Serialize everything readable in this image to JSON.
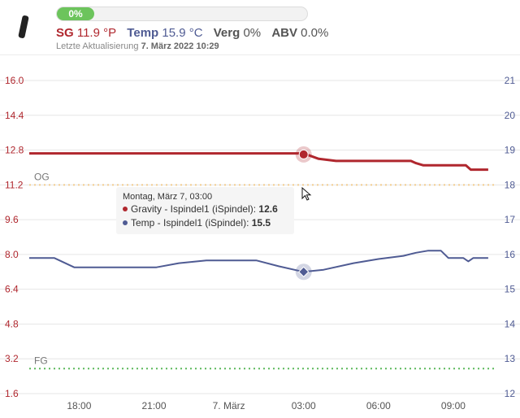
{
  "header": {
    "progress": {
      "label": "0%",
      "value": 0
    },
    "stats": [
      {
        "key": "SG",
        "value": "11.9 °P",
        "tone": "sg"
      },
      {
        "key": "Temp",
        "value": "15.9 °C",
        "tone": "temp"
      },
      {
        "key": "Verg",
        "value": "0%",
        "tone": "grey"
      },
      {
        "key": "ABV",
        "value": "0.0%",
        "tone": "grey"
      }
    ],
    "updated_label": "Letzte Aktualisierung",
    "updated_value": "7. März 2022 10:29",
    "device_icon": "hydrometer-icon"
  },
  "colors": {
    "gravity": "#b0272e",
    "temp": "#4f5b93",
    "og_line": "#f2cc8f",
    "fg_line": "#5cb85c",
    "grid": "#e6e6e6"
  },
  "chart_data": {
    "type": "line",
    "x_unit": "hours since 16:00 on 6 March 2022",
    "x_ticks": [
      {
        "x": 2,
        "label": "18:00"
      },
      {
        "x": 5,
        "label": "21:00"
      },
      {
        "x": 8,
        "label": "7. März"
      },
      {
        "x": 11,
        "label": "03:00"
      },
      {
        "x": 14,
        "label": "06:00"
      },
      {
        "x": 17,
        "label": "09:00"
      }
    ],
    "xlim": [
      0,
      18.5
    ],
    "y_left": {
      "min": 1.6,
      "max": 16.0,
      "ticks": [
        "16.0",
        "14.4",
        "12.8",
        "11.2",
        "9.6",
        "8.0",
        "6.4",
        "4.8",
        "3.2",
        "1.6"
      ]
    },
    "y_right": {
      "min": 12,
      "max": 21,
      "ticks": [
        "21",
        "20",
        "19",
        "18",
        "17",
        "16",
        "15",
        "14",
        "13",
        "12"
      ]
    },
    "reference_lines": [
      {
        "label": "OG",
        "value": 11.2,
        "axis": "left",
        "style": "dotted",
        "color": "#f2cc8f"
      },
      {
        "label": "FG",
        "value": 2.75,
        "axis": "left",
        "style": "dotted",
        "color": "#5cb85c"
      }
    ],
    "series": [
      {
        "name": "Gravity - Ispindel1 (iSpindel)",
        "axis": "left",
        "color": "#b0272e",
        "points": [
          [
            0,
            12.65
          ],
          [
            6,
            12.65
          ],
          [
            11,
            12.65
          ],
          [
            11.6,
            12.4
          ],
          [
            12.3,
            12.3
          ],
          [
            15.3,
            12.3
          ],
          [
            15.5,
            12.2
          ],
          [
            15.8,
            12.1
          ],
          [
            17.5,
            12.1
          ],
          [
            17.7,
            11.9
          ],
          [
            18.4,
            11.9
          ]
        ]
      },
      {
        "name": "Temp - Ispindel1 (iSpindel)",
        "axis": "right",
        "color": "#4f5b93",
        "points": [
          [
            0,
            15.9
          ],
          [
            1,
            15.9
          ],
          [
            1.8,
            15.63
          ],
          [
            5.1,
            15.63
          ],
          [
            6,
            15.75
          ],
          [
            7.1,
            15.83
          ],
          [
            9.1,
            15.83
          ],
          [
            10,
            15.66
          ],
          [
            11,
            15.5
          ],
          [
            11.8,
            15.56
          ],
          [
            13,
            15.75
          ],
          [
            14,
            15.87
          ],
          [
            15,
            15.96
          ],
          [
            15.5,
            16.05
          ],
          [
            16,
            16.11
          ],
          [
            16.5,
            16.11
          ],
          [
            16.8,
            15.9
          ],
          [
            17.4,
            15.9
          ],
          [
            17.6,
            15.8
          ],
          [
            17.8,
            15.9
          ],
          [
            18.4,
            15.9
          ]
        ]
      }
    ],
    "highlight": {
      "x": 11,
      "gravity": 12.6,
      "temp": 15.5
    },
    "tooltip": {
      "title": "Montag, März 7, 03:00",
      "rows": [
        {
          "label": "Gravity - Ispindel1 (iSpindel): ",
          "value": "12.6",
          "color": "#b0272e"
        },
        {
          "label": "Temp - Ispindel1 (iSpindel): ",
          "value": "15.5",
          "color": "#4f5b93"
        }
      ]
    }
  }
}
